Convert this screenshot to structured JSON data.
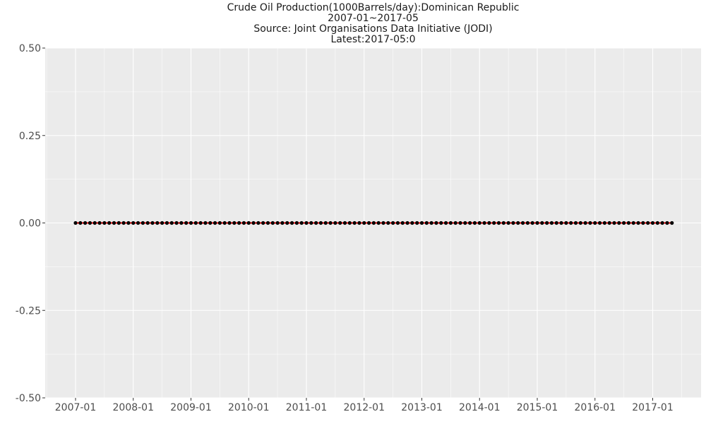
{
  "chart_data": {
    "type": "line",
    "title": "Crude Oil Production(1000Barrels/day):Dominican Republic",
    "subtitle_lines": [
      "2007-01~2017-05",
      "Source: Joint Organisations Data Initiative (JODI)",
      "Latest:2017-05:0"
    ],
    "xlabel": "",
    "ylabel": "",
    "x_start": "2007-01",
    "x_end": "2017-05",
    "x_ticks": [
      "2007-01",
      "2008-01",
      "2009-01",
      "2010-01",
      "2011-01",
      "2012-01",
      "2013-01",
      "2014-01",
      "2015-01",
      "2016-01",
      "2017-01"
    ],
    "y_ticks": [
      "0.50",
      "0.25",
      "0.00",
      "-0.25",
      "-0.50"
    ],
    "ylim": [
      -0.5,
      0.5
    ],
    "grid": true,
    "series": [
      {
        "line_color": "#ff0000",
        "point_color": "#000000",
        "values": [
          0,
          0,
          0,
          0,
          0,
          0,
          0,
          0,
          0,
          0,
          0,
          0,
          0,
          0,
          0,
          0,
          0,
          0,
          0,
          0,
          0,
          0,
          0,
          0,
          0,
          0,
          0,
          0,
          0,
          0,
          0,
          0,
          0,
          0,
          0,
          0,
          0,
          0,
          0,
          0,
          0,
          0,
          0,
          0,
          0,
          0,
          0,
          0,
          0,
          0,
          0,
          0,
          0,
          0,
          0,
          0,
          0,
          0,
          0,
          0,
          0,
          0,
          0,
          0,
          0,
          0,
          0,
          0,
          0,
          0,
          0,
          0,
          0,
          0,
          0,
          0,
          0,
          0,
          0,
          0,
          0,
          0,
          0,
          0,
          0,
          0,
          0,
          0,
          0,
          0,
          0,
          0,
          0,
          0,
          0,
          0,
          0,
          0,
          0,
          0,
          0,
          0,
          0,
          0,
          0,
          0,
          0,
          0,
          0,
          0,
          0,
          0,
          0,
          0,
          0,
          0,
          0,
          0,
          0,
          0,
          0,
          0,
          0,
          0,
          0
        ]
      }
    ]
  }
}
